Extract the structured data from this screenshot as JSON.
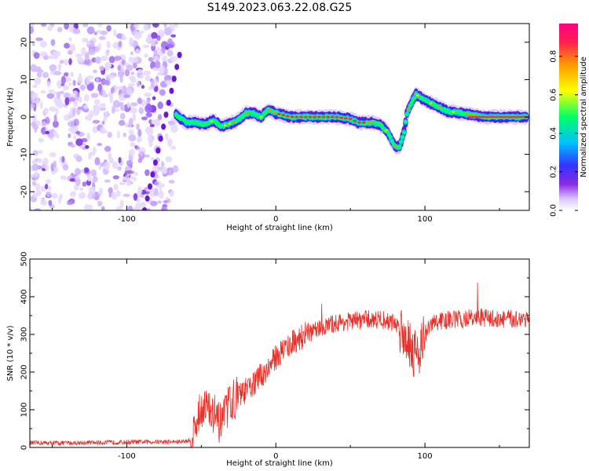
{
  "figure": {
    "title": "S149.2023.063.22.08.G25"
  },
  "chart_data": [
    {
      "type": "heatmap",
      "title": "S149.2023.063.22.08.G25",
      "xlabel": "Height of straight line (km)",
      "ylabel": "Frequency (Hz)",
      "xlim": [
        -165,
        170
      ],
      "ylim": [
        -25,
        25
      ],
      "xticks": [
        -100,
        0,
        100
      ],
      "yticks": [
        -20,
        -10,
        0,
        10,
        20
      ],
      "colorbar": {
        "label": "Normalized spectral amplitude",
        "range": [
          0,
          0.97
        ],
        "ticks": [
          0.0,
          0.2,
          0.4,
          0.6,
          0.8
        ],
        "colormap": [
          "#ffffff",
          "#dcc8ff",
          "#8a2be2",
          "#3333ff",
          "#00c0ff",
          "#00ff66",
          "#ffff00",
          "#ff9900",
          "#ff2050",
          "#ff0080"
        ]
      },
      "ridge": {
        "x": [
          -67,
          -60,
          -55,
          -48,
          -42,
          -36,
          -32,
          -26,
          -20,
          -15,
          -10,
          -5,
          0,
          10,
          20,
          30,
          40,
          50,
          55,
          60,
          65,
          70,
          75,
          80,
          83,
          86,
          88,
          90,
          94,
          98,
          102,
          108,
          115,
          125,
          140,
          155,
          168
        ],
        "y": [
          0.5,
          -1.5,
          -1.5,
          -2,
          -1,
          -2.5,
          -2,
          -1,
          1,
          1,
          0,
          2,
          1,
          0,
          0,
          0,
          0,
          -0.5,
          -1.5,
          -1.5,
          -1.5,
          -2,
          -4,
          -8,
          -8,
          -4,
          1,
          3,
          6,
          5,
          4,
          3,
          1.5,
          1,
          0,
          0,
          0
        ],
        "strong_segment_km": [
          0,
          60
        ]
      },
      "noise_region_km": [
        -165,
        -67
      ]
    },
    {
      "type": "line",
      "xlabel": "Height of straight line (km)",
      "ylabel": "SNR (10 * v/v)",
      "xlim": [
        -165,
        170
      ],
      "ylim": [
        0,
        500
      ],
      "xticks": [
        -100,
        0,
        100
      ],
      "yticks": [
        0,
        100,
        200,
        300,
        400,
        500
      ],
      "series": [
        {
          "name": "SNR",
          "color": "#e8302a",
          "x": [
            -165,
            -140,
            -120,
            -100,
            -80,
            -65,
            -57,
            -52,
            -48,
            -44,
            -40,
            -36,
            -32,
            -28,
            -24,
            -20,
            -16,
            -12,
            -8,
            -4,
            0,
            5,
            10,
            15,
            20,
            30,
            40,
            50,
            60,
            70,
            80,
            85,
            90,
            93,
            96,
            100,
            105,
            110,
            120,
            130,
            140,
            150,
            160,
            170
          ],
          "values": [
            12,
            12,
            13,
            14,
            15,
            15,
            18,
            80,
            120,
            90,
            70,
            60,
            110,
            130,
            140,
            150,
            165,
            180,
            200,
            215,
            240,
            260,
            275,
            290,
            300,
            315,
            330,
            335,
            340,
            340,
            330,
            310,
            280,
            250,
            260,
            300,
            330,
            335,
            340,
            340,
            345,
            340,
            340,
            345
          ]
        }
      ]
    }
  ]
}
